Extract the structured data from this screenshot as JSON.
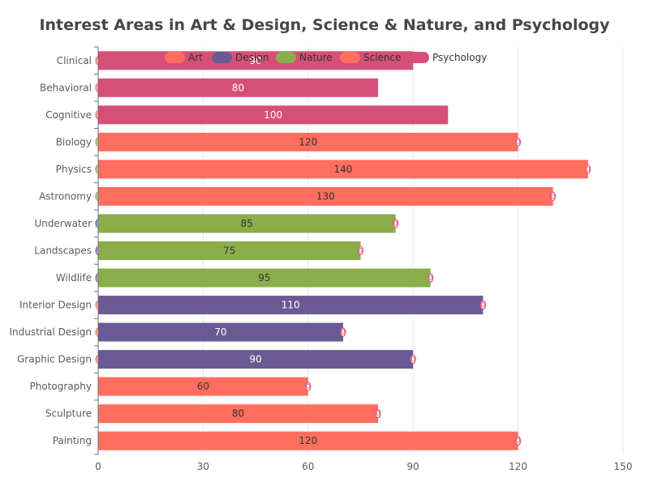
{
  "chart_data": {
    "type": "bar",
    "orientation": "horizontal",
    "stacked": true,
    "title": "Interest Areas in Art & Design, Science & Nature, and Psychology",
    "categories": [
      "Painting",
      "Sculpture",
      "Photography",
      "Graphic Design",
      "Industrial Design",
      "Interior Design",
      "Wildlife",
      "Landscapes",
      "Underwater",
      "Astronomy",
      "Physics",
      "Biology",
      "Cognitive",
      "Behavioral",
      "Clinical"
    ],
    "xlim": [
      0,
      150
    ],
    "xticks": [
      0,
      30,
      60,
      90,
      120,
      150
    ],
    "grid": true,
    "legend_position": "top",
    "series": [
      {
        "name": "Art",
        "color": "#ff6e5f",
        "label_color": "#333333",
        "values": [
          120,
          80,
          60,
          0,
          0,
          0,
          0,
          0,
          0,
          0,
          0,
          0,
          0,
          0,
          0
        ]
      },
      {
        "name": "Design",
        "color": "#6a5a94",
        "label_color": "#ffffff",
        "values": [
          0,
          0,
          0,
          90,
          70,
          110,
          0,
          0,
          0,
          0,
          0,
          0,
          0,
          0,
          0
        ]
      },
      {
        "name": "Nature",
        "color": "#8aae4a",
        "label_color": "#333333",
        "values": [
          0,
          0,
          0,
          0,
          0,
          0,
          95,
          75,
          85,
          0,
          0,
          0,
          0,
          0,
          0
        ]
      },
      {
        "name": "Science",
        "color": "#ff6e5f",
        "label_color": "#333333",
        "values": [
          0,
          0,
          0,
          0,
          0,
          0,
          0,
          0,
          0,
          130,
          140,
          120,
          0,
          0,
          0
        ]
      },
      {
        "name": "Psychology",
        "color": "#d64f78",
        "label_color": "#ffffff",
        "values": [
          0,
          0,
          0,
          0,
          0,
          0,
          0,
          0,
          0,
          0,
          0,
          0,
          100,
          80,
          90
        ]
      }
    ]
  }
}
